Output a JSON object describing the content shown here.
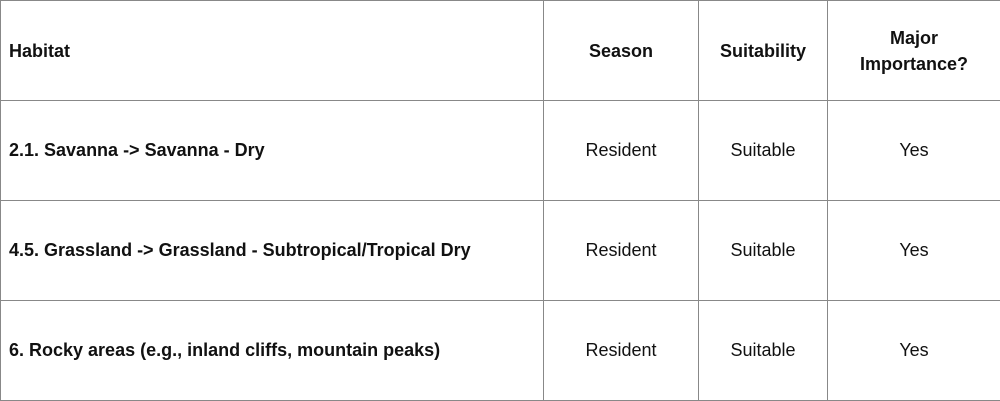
{
  "headers": [
    "Habitat",
    "Season",
    "Suitability",
    "Major Importance?"
  ],
  "rows": [
    {
      "habitat": "2.1. Savanna -> Savanna - Dry",
      "season": "Resident",
      "suitability": "Suitable",
      "major": "Yes"
    },
    {
      "habitat": "4.5. Grassland -> Grassland - Subtropical/Tropical Dry",
      "season": "Resident",
      "suitability": "Suitable",
      "major": "Yes"
    },
    {
      "habitat": "6. Rocky areas (e.g., inland cliffs, mountain peaks)",
      "season": "Resident",
      "suitability": "Suitable",
      "major": "Yes"
    }
  ]
}
